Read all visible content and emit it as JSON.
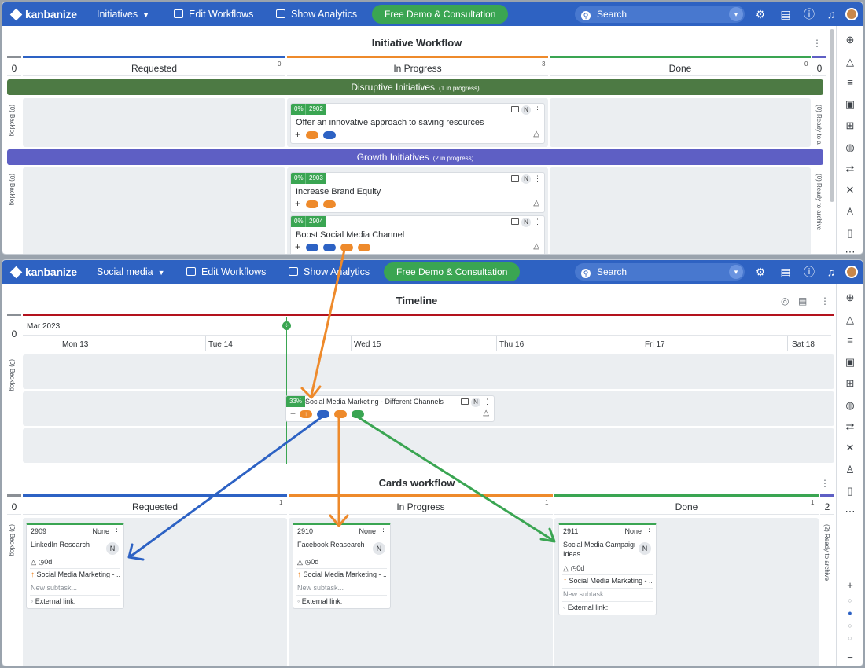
{
  "window1": {
    "logo": "kanbanize",
    "board_select": "Initiatives",
    "edit_workflows": "Edit Workflows",
    "show_analytics": "Show Analytics",
    "demo_button": "Free Demo & Consultation",
    "search_placeholder": "Search",
    "board_title": "Initiative Workflow",
    "left_count": "0",
    "right_count": "0",
    "columns": [
      {
        "label": "Requested",
        "count": "0"
      },
      {
        "label": "In Progress",
        "count": "3"
      },
      {
        "label": "Done",
        "count": "0"
      }
    ],
    "lanes": [
      {
        "label": "Disruptive Initiatives",
        "badge": "(1 in progress)"
      },
      {
        "label": "Growth Initiatives",
        "badge": "(2 in progress)"
      }
    ],
    "backlog_label": "(0) Backlog",
    "ready_label": "(0) Ready to archive",
    "ready_label_short": "(0) Ready to a",
    "cards": [
      {
        "pct": "0%",
        "id": "2902",
        "n": "N",
        "title": "Offer an innovative approach to saving resources"
      },
      {
        "pct": "0%",
        "id": "2903",
        "n": "N",
        "title": "Increase Brand Equity"
      },
      {
        "pct": "0%",
        "id": "2904",
        "n": "N",
        "title": "Boost Social Media Channel"
      }
    ]
  },
  "window2": {
    "logo": "kanbanize",
    "board_select": "Social media",
    "edit_workflows": "Edit Workflows",
    "show_analytics": "Show Analytics",
    "demo_button": "Free Demo & Consultation",
    "search_placeholder": "Search",
    "timeline_title": "Timeline",
    "timeline_left_count": "0",
    "month": "Mar 2023",
    "days": [
      "Mon 13",
      "Tue 14",
      "Wed 15",
      "Thu 16",
      "Fri 17",
      "Sat 18"
    ],
    "backlog_label": "(0) Backlog",
    "timeline_card": {
      "pct": "33%",
      "n": "N",
      "title": "Social Media Marketing - Different Channels"
    },
    "cards_title": "Cards workflow",
    "cards_left_count": "0",
    "cards_right_count": "2",
    "columns": [
      {
        "label": "Requested",
        "count": "1"
      },
      {
        "label": "In Progress",
        "count": "1"
      },
      {
        "label": "Done",
        "count": "1"
      }
    ],
    "ready_label": "(2) Ready to archive",
    "cards": [
      {
        "id": "2909",
        "none": "None",
        "title": "LinkedIn Research",
        "title2": "",
        "age": "0d",
        "parent": "Social Media Marketing - ...",
        "subtask": "New subtask...",
        "link": "External link:"
      },
      {
        "id": "2910",
        "none": "None",
        "title": "Facebook Reasearch",
        "title2": "",
        "age": "0d",
        "parent": "Social Media Marketing - ...",
        "subtask": "New subtask...",
        "link": "External link:"
      },
      {
        "id": "2911",
        "none": "None",
        "title": "Social Media Campaign",
        "title2": "Ideas",
        "age": "0d",
        "parent": "Social Media Marketing - ...",
        "subtask": "New subtask...",
        "link": "External link:"
      }
    ]
  },
  "icons": {
    "settings": "gear-icon",
    "clipboard": "clipboard-icon",
    "help": "help-icon",
    "notifications": "bell-icon"
  },
  "colors": {
    "topbar": "#2e62c2",
    "demo": "#3aa552",
    "blue": "#2d62c4",
    "orange": "#ee8a2b",
    "green": "#3aa552",
    "purple": "#5e5fc4",
    "lane_green": "#4d7a44",
    "red_line": "#b3121d"
  }
}
